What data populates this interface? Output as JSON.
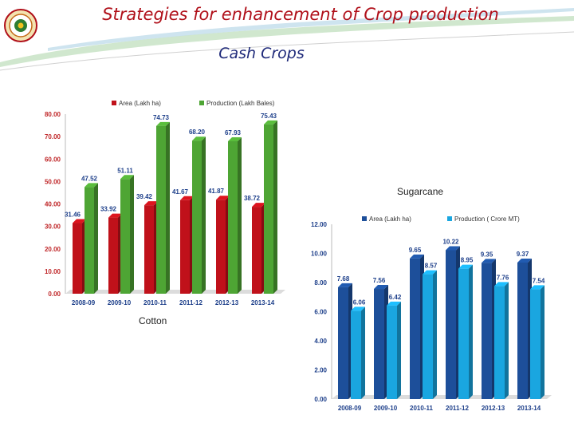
{
  "slide": {
    "title": "Strategies for enhancement of Crop production",
    "subtitle": "Cash Crops"
  },
  "colors": {
    "title": "#b0101a",
    "subtitle": "#1f2a7a",
    "area_red": "#c0111a",
    "production_green": "#4ea534",
    "area_navy": "#1d4f9a",
    "production_sky": "#1aa6e0"
  },
  "chart_data": [
    {
      "id": "cotton",
      "type": "bar",
      "caption": "Cotton",
      "categories": [
        "2008-09",
        "2009-10",
        "2010-11",
        "2011-12",
        "2012-13",
        "2013-14"
      ],
      "series": [
        {
          "name": "Area (Lakh ha)",
          "values": [
            31.46,
            33.92,
            39.42,
            41.67,
            41.87,
            38.72
          ],
          "labels": [
            "31.46",
            "33.92",
            "39.42",
            "41.67",
            "41.87",
            "38.72"
          ],
          "color": "#c0111a"
        },
        {
          "name": "Production (Lakh Bales)",
          "values": [
            47.52,
            51.11,
            74.73,
            68.2,
            67.93,
            75.43
          ],
          "labels": [
            "47.52",
            "51.11",
            "74.73",
            "68.20",
            "67.93",
            "75.43"
          ],
          "color": "#4ea534"
        }
      ],
      "yticks": [
        "0.00",
        "10.00",
        "20.00",
        "30.00",
        "40.00",
        "50.00",
        "60.00",
        "70.00",
        "80.00"
      ],
      "ylim": [
        0,
        80
      ],
      "legend": "top",
      "grid": false
    },
    {
      "id": "sugarcane",
      "type": "bar",
      "caption": "Sugarcane",
      "categories": [
        "2008-09",
        "2009-10",
        "2010-11",
        "2011-12",
        "2012-13",
        "2013-14"
      ],
      "series": [
        {
          "name": "Area (Lakh ha)",
          "values": [
            7.68,
            7.56,
            9.65,
            10.22,
            9.35,
            9.37
          ],
          "labels": [
            "7.68",
            "7.56",
            "9.65",
            "10.22",
            "9.35",
            "9.37"
          ],
          "color": "#1d4f9a"
        },
        {
          "name": "Production ( Crore MT)",
          "values": [
            6.06,
            6.42,
            8.57,
            8.95,
            7.76,
            7.54
          ],
          "labels": [
            "6.06",
            "6.42",
            "8.57",
            "8.95",
            "7.76",
            "7.54"
          ],
          "color": "#1aa6e0"
        }
      ],
      "yticks": [
        "0.00",
        "2.00",
        "4.00",
        "6.00",
        "8.00",
        "10.00",
        "12.00"
      ],
      "ylim": [
        0,
        12
      ],
      "legend": "top",
      "grid": false
    }
  ]
}
